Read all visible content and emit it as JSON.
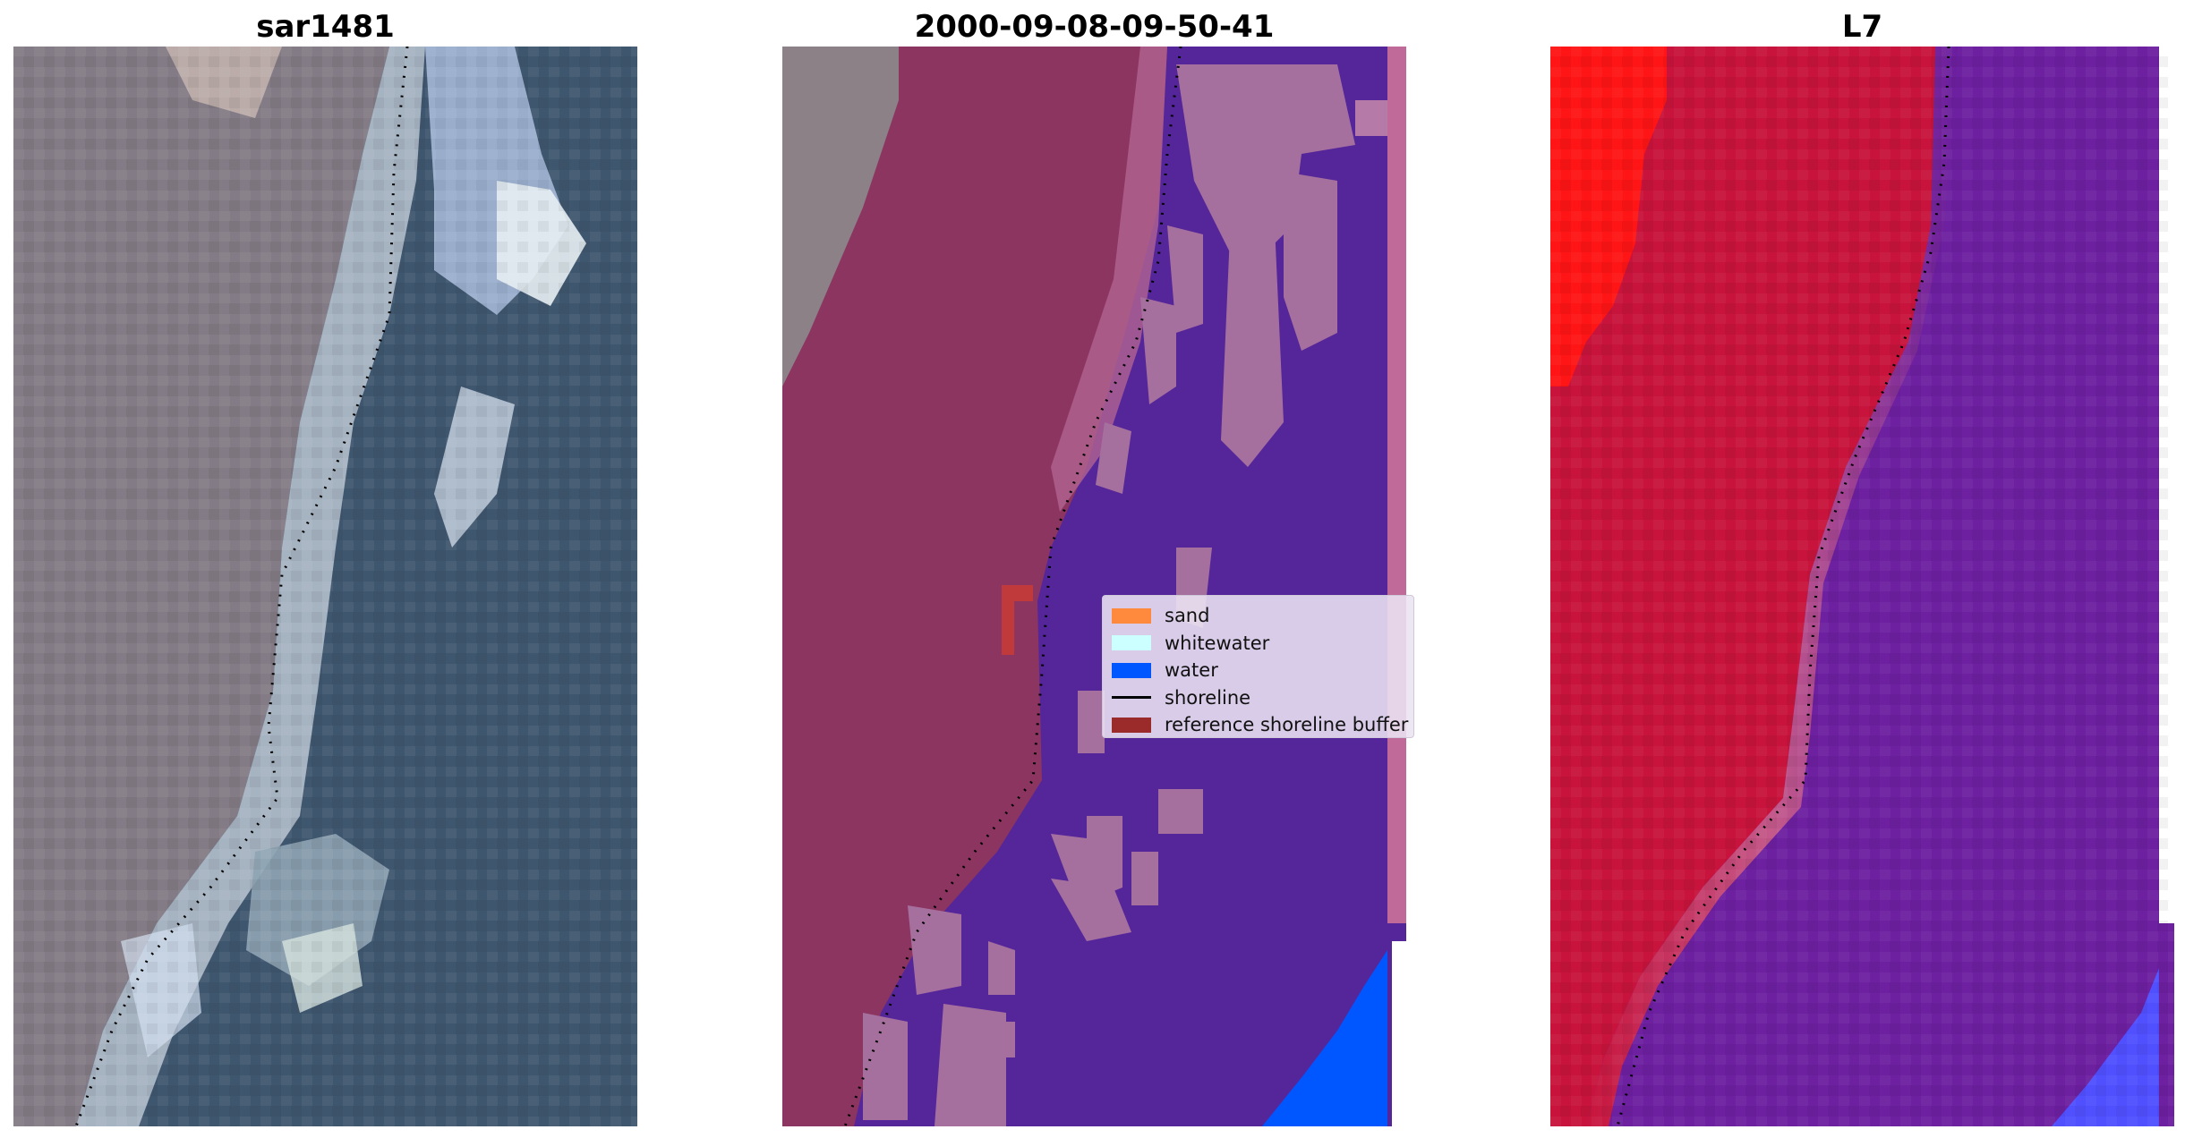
{
  "panels": {
    "left": {
      "title": "sar1481"
    },
    "middle": {
      "title": "2000-09-08-09-50-41"
    },
    "right": {
      "title": "L7"
    }
  },
  "legend": {
    "items": [
      {
        "label": "sand",
        "color": "#ff8a3d",
        "kind": "patch"
      },
      {
        "label": "whitewater",
        "color": "#ccffff",
        "kind": "patch"
      },
      {
        "label": "water",
        "color": "#0057ff",
        "kind": "patch"
      },
      {
        "label": "shoreline",
        "color": "#000000",
        "kind": "line"
      },
      {
        "label": "reference shoreline buffer",
        "color": "#9b2b2b",
        "kind": "patch"
      }
    ]
  },
  "colors": {
    "land_rgb": "#857b85",
    "sea_rgb": "#3e546e",
    "classified_land": "#8b2f5a",
    "classified_water_overlay": "#56259a",
    "classified_whitewater_overlay": "#a56b9e",
    "index_land": "#c8143c",
    "index_water": "#6a1e9e",
    "index_high_land": "#ff1515",
    "index_low_water": "#5050ff"
  }
}
